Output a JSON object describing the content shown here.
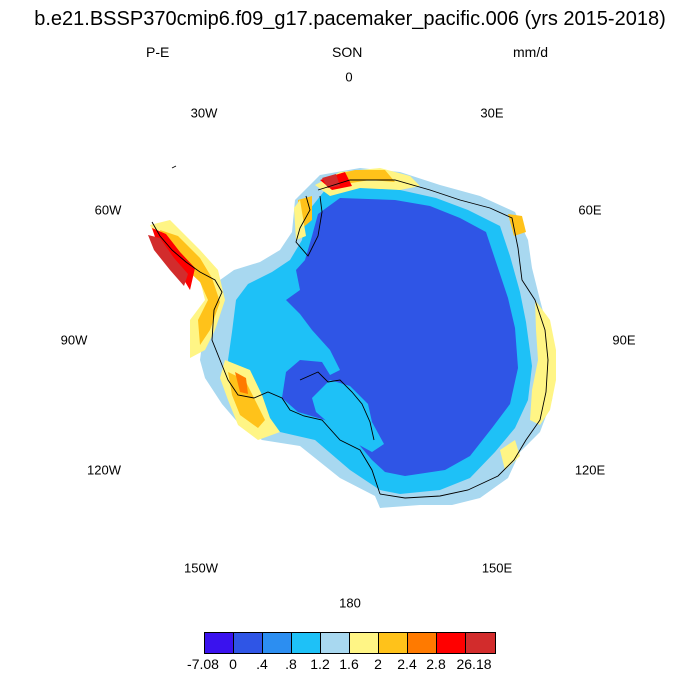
{
  "header": {
    "title": "b.e21.BSSP370cmip6.f09_g17.pacemaker_pacific.006 (yrs 2015-2018)",
    "left": "P-E",
    "center": "SON",
    "right": "mm/d"
  },
  "longitude_labels": {
    "lon_0": "0",
    "lon_30e": "30E",
    "lon_60e": "60E",
    "lon_90e": "90E",
    "lon_120e": "120E",
    "lon_150e": "150E",
    "lon_180": "180",
    "lon_150w": "150W",
    "lon_120w": "120W",
    "lon_90w": "90W",
    "lon_60w": "60W",
    "lon_30w": "30W"
  },
  "colorbar": {
    "colors": [
      "#3a12ee",
      "#2f55e6",
      "#2c8ef1",
      "#1ec1f7",
      "#a8d8f0",
      "#fff585",
      "#ffc21a",
      "#ff7a00",
      "#ff0000",
      "#d22c2c"
    ],
    "tick_labels": [
      "-7.08",
      "0",
      ".4",
      ".8",
      "1.2",
      "1.6",
      "2",
      "2.4",
      "2.8",
      "26.18"
    ]
  },
  "map": {
    "projection": "south polar stereographic",
    "field": "P-E",
    "units": "mm/d"
  }
}
